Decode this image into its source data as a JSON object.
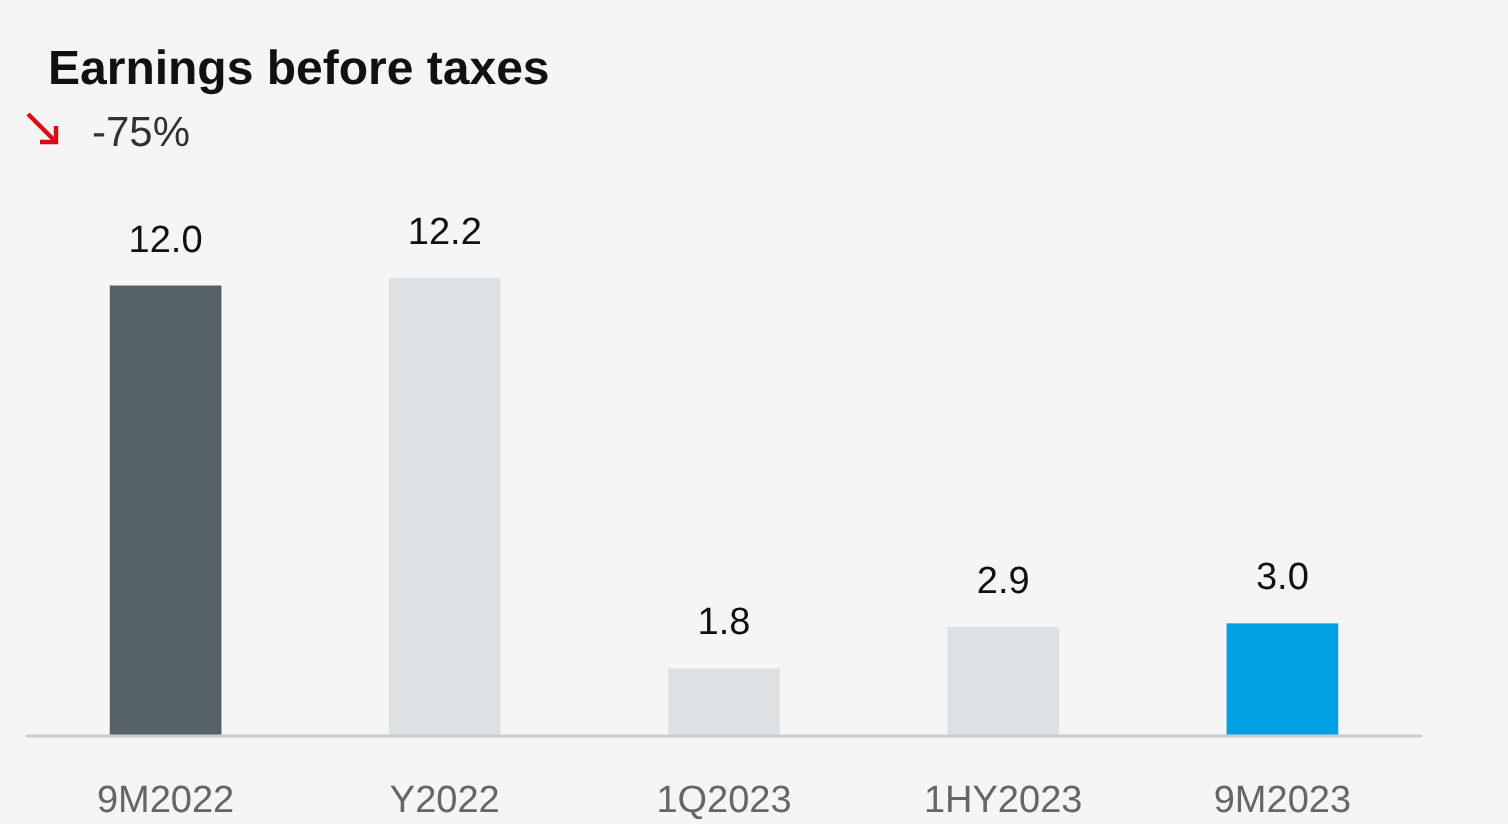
{
  "chart_data": {
    "type": "bar",
    "title": "Earnings before taxes",
    "subtitle": "-75%",
    "categories": [
      "9M2022",
      "Y2022",
      "1Q2023",
      "1HY2023",
      "9M2023"
    ],
    "values": [
      12.0,
      12.2,
      1.8,
      2.9,
      3.0
    ],
    "colors": [
      "#546169",
      "#dde1e4",
      "#dde1e4",
      "#dde1e4",
      "#00a0e3"
    ],
    "value_labels": [
      "12.0",
      "12.2",
      "1.8",
      "2.9",
      "3.0"
    ]
  }
}
